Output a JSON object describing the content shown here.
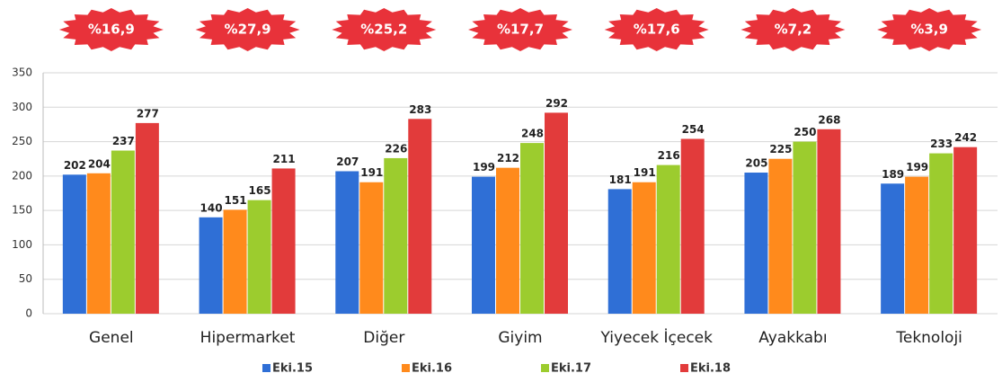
{
  "chart_data": {
    "type": "bar",
    "categories": [
      "Genel",
      "Hipermarket",
      "Diğer",
      "Giyim",
      "Yiyecek İçecek",
      "Ayakkabı",
      "Teknoloji"
    ],
    "series": [
      {
        "name": "Eki.15",
        "color": "#2f6fd6",
        "values": [
          202,
          140,
          207,
          199,
          181,
          205,
          189
        ]
      },
      {
        "name": "Eki.16",
        "color": "#ff8a1c",
        "values": [
          204,
          151,
          191,
          212,
          191,
          225,
          199
        ]
      },
      {
        "name": "Eki.17",
        "color": "#9ccc2e",
        "values": [
          237,
          165,
          226,
          248,
          216,
          250,
          233
        ]
      },
      {
        "name": "Eki.18",
        "color": "#e23b3b",
        "values": [
          277,
          211,
          283,
          292,
          254,
          268,
          242
        ]
      }
    ],
    "annotations": [
      "%16,9",
      "%27,9",
      "%25,2",
      "%17,7",
      "%17,6",
      "%7,2",
      "%3,9"
    ],
    "ylim": [
      0,
      350
    ],
    "yticks": [
      0,
      50,
      100,
      150,
      200,
      250,
      300,
      350
    ],
    "grid": true
  }
}
